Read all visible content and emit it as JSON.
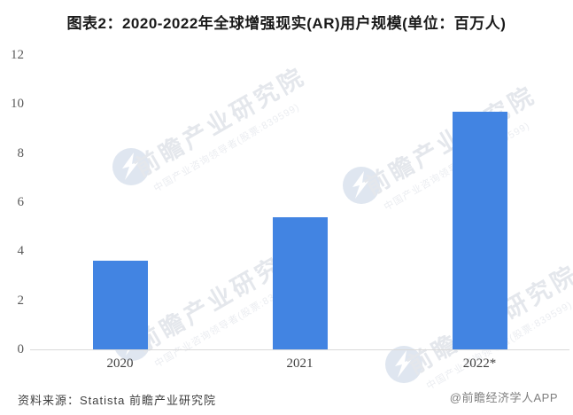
{
  "title": "图表2：2020-2022年全球增强现实(AR)用户规模(单位：百万人)",
  "chart_data": {
    "type": "bar",
    "categories": [
      "2020",
      "2021",
      "2022*"
    ],
    "values": [
      3.6,
      5.4,
      9.7
    ],
    "title": "图表2：2020-2022年全球增强现实(AR)用户规模(单位：百万人)",
    "xlabel": "",
    "ylabel": "",
    "ylim": [
      0,
      12
    ],
    "ytick_step": 2,
    "yticks": [
      0,
      2,
      4,
      6,
      8,
      10,
      12
    ],
    "grid": false,
    "legend": "none",
    "bar_color": "#4284E2"
  },
  "footer": {
    "source": "资料来源：Statista 前瞻产业研究院",
    "credit": "@前瞻经济学人APP"
  },
  "watermark": {
    "brand": "前瞻产业研究院",
    "tagline": "中国产业咨询领导者(股票:839599)"
  },
  "colors": {
    "bar": "#4284E2",
    "axis_line": "#D9D9D9",
    "tick_label": "#595959",
    "xtick_label": "#404040",
    "title": "#1A1A1A",
    "source_text": "#404040",
    "credit_text": "#7F7F7F",
    "watermark_text": "#E4E7EC",
    "watermark_tagline": "#EBEDF1",
    "watermark_logo": "#DFE6F0"
  }
}
